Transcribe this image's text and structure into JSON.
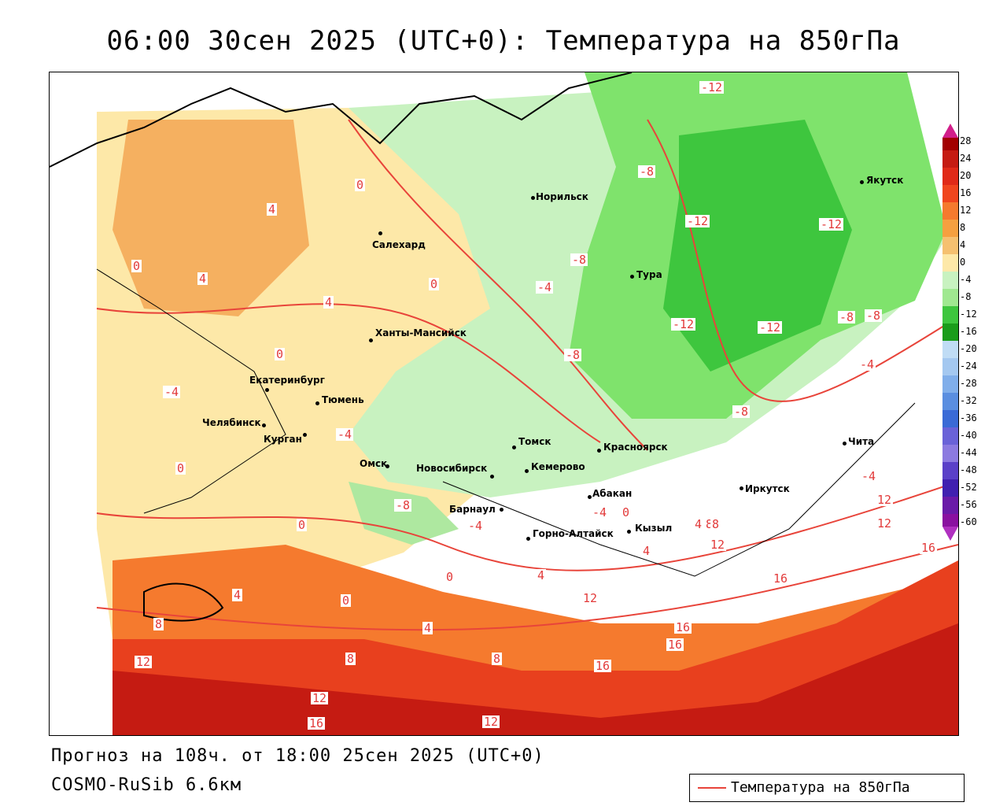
{
  "title": "06:00 30сен 2025 (UTC+0): Температура на 850гПа",
  "footer": {
    "forecast": "Прогноз на 108ч. от 18:00 25сен 2025 (UTC+0)",
    "model": "COSMO-RuSib 6.6км"
  },
  "legend": {
    "label": "Температура на 850гПа",
    "line_color": "#e8443a"
  },
  "scale": {
    "ticks": [
      "28",
      "24",
      "20",
      "16",
      "12",
      "8",
      "4",
      "0",
      "-4",
      "-8",
      "-12",
      "-16",
      "-20",
      "-24",
      "-28",
      "-32",
      "-36",
      "-40",
      "-44",
      "-48",
      "-52",
      "-56",
      "-60"
    ]
  },
  "cities": [
    {
      "name": "Норильск"
    },
    {
      "name": "Якутск"
    },
    {
      "name": "Салехард"
    },
    {
      "name": "Тура"
    },
    {
      "name": "Ханты-Мансийск"
    },
    {
      "name": "Екатеринбург"
    },
    {
      "name": "Тюмень"
    },
    {
      "name": "Челябинск"
    },
    {
      "name": "Курган"
    },
    {
      "name": "Томск"
    },
    {
      "name": "Красноярск"
    },
    {
      "name": "Омск"
    },
    {
      "name": "Новосибирск"
    },
    {
      "name": "Кемерово"
    },
    {
      "name": "Абакан"
    },
    {
      "name": "Иркутск"
    },
    {
      "name": "Чита"
    },
    {
      "name": "Барнаул"
    },
    {
      "name": "Горно-Алтайск"
    },
    {
      "name": "Кызыл"
    }
  ],
  "contour_labels": [
    "-12",
    "-8",
    "-12",
    "-12",
    "-8",
    "-4",
    "-8",
    "-12",
    "-12",
    "-8",
    "-4",
    "-8",
    "-4",
    "-8",
    "-4",
    "0",
    "0",
    "4",
    "4",
    "4",
    "4",
    "0",
    "0",
    "0",
    "-4",
    "-4",
    "-8",
    "-4",
    "0",
    "0",
    "4",
    "4",
    "0",
    "0",
    "4",
    "8",
    "8",
    "12",
    "12",
    "16",
    "16",
    "12",
    "16",
    "12",
    "16",
    "16",
    "12",
    "8",
    "8",
    "12",
    "12",
    "16",
    "4",
    "8"
  ]
}
